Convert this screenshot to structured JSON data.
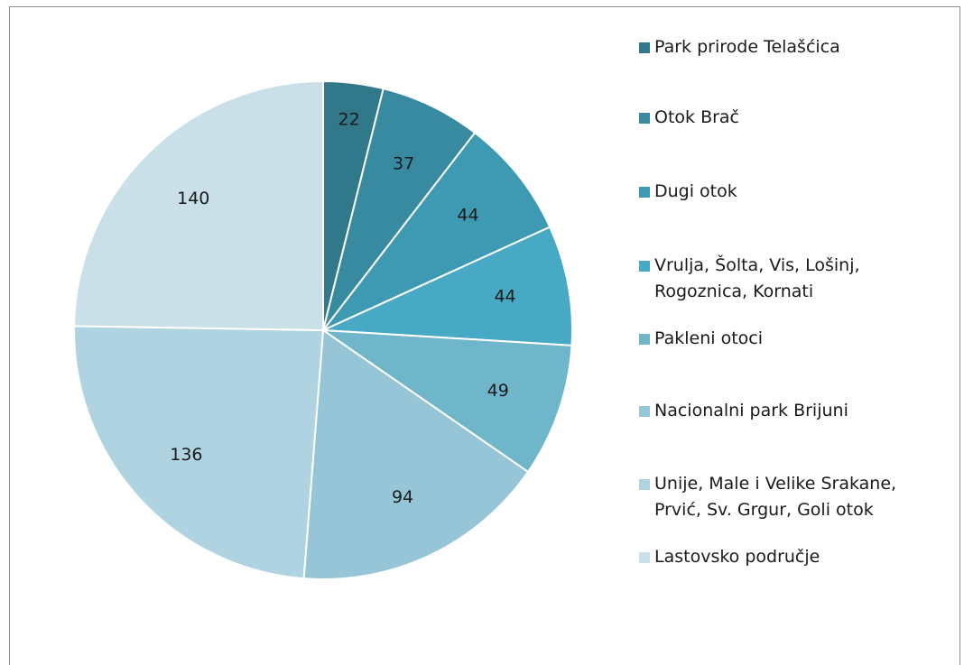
{
  "chart_data": {
    "type": "pie",
    "title": "",
    "categories": [
      "Park prirode Telašćica",
      "Otok Brač",
      "Dugi otok",
      "Vrulja, Šolta, Vis, Lošinj,\nRogoznica, Kornati",
      "Pakleni otoci",
      "Nacionalni park Brijuni",
      "Unije, Male i Velike Srakane,\nPrvić, Sv. Grgur, Goli otok",
      "Lastovsko područje"
    ],
    "values": [
      22,
      37,
      44,
      44,
      49,
      94,
      136,
      140
    ],
    "colors": [
      "#31788a",
      "#388aa0",
      "#3e9ab2",
      "#47a9c3",
      "#6fb6cb",
      "#95c5d7",
      "#b0d3e1",
      "#c9e0e9"
    ],
    "data_labels_shown": true,
    "legend_position": "right"
  }
}
